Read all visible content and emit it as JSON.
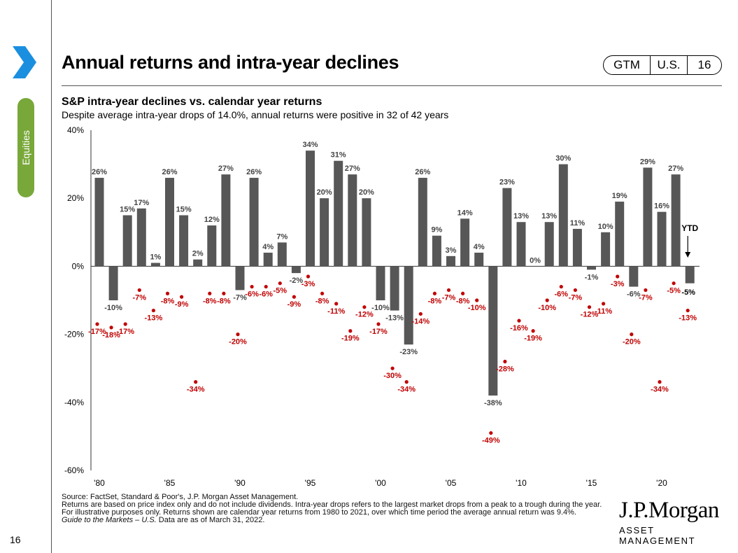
{
  "section": {
    "label": "Equities",
    "page_number": "16"
  },
  "header": {
    "title": "Annual returns and intra-year declines"
  },
  "badge": {
    "gtm": "GTM",
    "region": "U.S.",
    "page": "16"
  },
  "colors": {
    "bar": "#575757",
    "decline": "#c00000",
    "accent_tab": "#79a83a",
    "chevron": "#1a8fe0"
  },
  "chart_data": {
    "type": "bar",
    "title": "S&P intra-year declines vs. calendar year returns",
    "subtitle": "Despite average intra-year drops of 14.0%, annual returns were positive in 32 of 42 years",
    "ylim": [
      -60,
      40
    ],
    "yticks": [
      "40%",
      "20%",
      "0%",
      "-20%",
      "-40%",
      "-60%"
    ],
    "xticks": [
      "'80",
      "'85",
      "'90",
      "'95",
      "'00",
      "'05",
      "'10",
      "'15",
      "'20"
    ],
    "categories": [
      1980,
      1981,
      1982,
      1983,
      1984,
      1985,
      1986,
      1987,
      1988,
      1989,
      1990,
      1991,
      1992,
      1993,
      1994,
      1995,
      1996,
      1997,
      1998,
      1999,
      2000,
      2001,
      2002,
      2003,
      2004,
      2005,
      2006,
      2007,
      2008,
      2009,
      2010,
      2011,
      2012,
      2013,
      2014,
      2015,
      2016,
      2017,
      2018,
      2019,
      2020,
      2021,
      "2022 YTD"
    ],
    "series": [
      {
        "role": "calendar_year_return",
        "values": [
          26,
          -10,
          15,
          17,
          1,
          26,
          15,
          2,
          12,
          27,
          -7,
          26,
          4,
          7,
          -2,
          34,
          20,
          31,
          27,
          20,
          -10,
          -13,
          -23,
          26,
          9,
          3,
          14,
          4,
          -38,
          23,
          13,
          0,
          13,
          30,
          11,
          -1,
          10,
          19,
          -6,
          29,
          16,
          27,
          -5
        ],
        "labels": [
          "26%",
          "-10%",
          "15%",
          "17%",
          "1%",
          "26%",
          "15%",
          "2%",
          "12%",
          "27%",
          "-7%",
          "26%",
          "4%",
          "7%",
          "-2%",
          "34%",
          "20%",
          "31%",
          "27%",
          "20%",
          "-10%",
          "-13%",
          "-23%",
          "26%",
          "9%",
          "3%",
          "14%",
          "4%",
          "-38%",
          "23%",
          "13%",
          "0%",
          "13%",
          "30%",
          "11%",
          "-1%",
          "10%",
          "19%",
          "-6%",
          "29%",
          "16%",
          "27%",
          "-5%"
        ]
      },
      {
        "role": "intra_year_decline",
        "values": [
          -17,
          -18,
          -17,
          -7,
          -13,
          -8,
          -9,
          -34,
          -8,
          -8,
          -20,
          -6,
          -6,
          -5,
          -9,
          -3,
          -8,
          -11,
          -19,
          -12,
          -17,
          -30,
          -34,
          -14,
          -8,
          -7,
          -8,
          -10,
          -49,
          -28,
          -16,
          -19,
          -10,
          -6,
          -7,
          -12,
          -11,
          -3,
          -20,
          -7,
          -34,
          -5,
          -13
        ],
        "labels": [
          "-17%",
          "-18%",
          "-17%",
          "-7%",
          "-13%",
          "-8%",
          "-9%",
          "-34%",
          "-8%",
          "-8%",
          "-20%",
          "-6%",
          "-6%",
          "-5%",
          "-9%",
          "-3%",
          "-8%",
          "-11%",
          "-19%",
          "-12%",
          "-17%",
          "-30%",
          "-34%",
          "-14%",
          "-8%",
          "-7%",
          "-8%",
          "-10%",
          "-49%",
          "-28%",
          "-16%",
          "-19%",
          "-10%",
          "-6%",
          "-7%",
          "-12%",
          "-11%",
          "-3%",
          "-20%",
          "-7%",
          "-34%",
          "-5%",
          "-13%"
        ]
      }
    ],
    "annotation": "YTD"
  },
  "footer": {
    "source": "Source: FactSet, Standard & Poor's, J.P. Morgan Asset Management.",
    "note": "Returns are based on price index only and do not include dividends. Intra-year drops refers to the largest market drops from a peak to a trough during the year. For illustrative purposes only. Returns shown are calendar year returns from 1980 to 2021, over which time period the average annual return was 9.4%.",
    "guide_italic": "Guide to the Markets – U.S.",
    "guide_rest": " Data are as of March 31, 2022."
  },
  "logo": {
    "brand": "J.P.Morgan",
    "sub": "ASSET MANAGEMENT"
  }
}
